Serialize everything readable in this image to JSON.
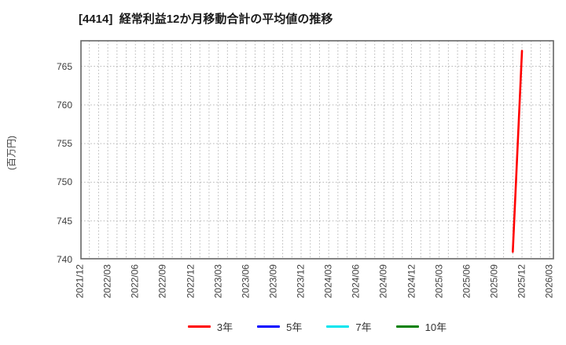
{
  "chart_data": {
    "type": "line",
    "title": "[4414]  経常利益12か月移動合計の平均値の推移",
    "ylabel": "(百万円)",
    "x_start": "2021/12",
    "x_months_total": 51.5,
    "x_tick_labels": [
      "2021/12",
      "2022/03",
      "2022/06",
      "2022/09",
      "2022/12",
      "2023/03",
      "2023/06",
      "2023/09",
      "2023/12",
      "2024/03",
      "2024/06",
      "2024/09",
      "2024/12",
      "2025/03",
      "2025/06",
      "2025/09",
      "2025/12",
      "2026/03"
    ],
    "yticks": [
      740,
      745,
      750,
      755,
      760,
      765
    ],
    "ylim": [
      740,
      768.4
    ],
    "grid": true,
    "legend_position": "bottom",
    "grid_color": "#b5b5b5",
    "axis_border_color": "#666666",
    "series": [
      {
        "name": "3年",
        "color": "#ff0000",
        "points": [
          [
            "2025/11",
            741
          ],
          [
            "2025/12",
            767
          ]
        ]
      },
      {
        "name": "5年",
        "color": "#0000ff",
        "points": []
      },
      {
        "name": "7年",
        "color": "#00e5ee",
        "points": []
      },
      {
        "name": "10年",
        "color": "#008000",
        "points": []
      }
    ]
  }
}
